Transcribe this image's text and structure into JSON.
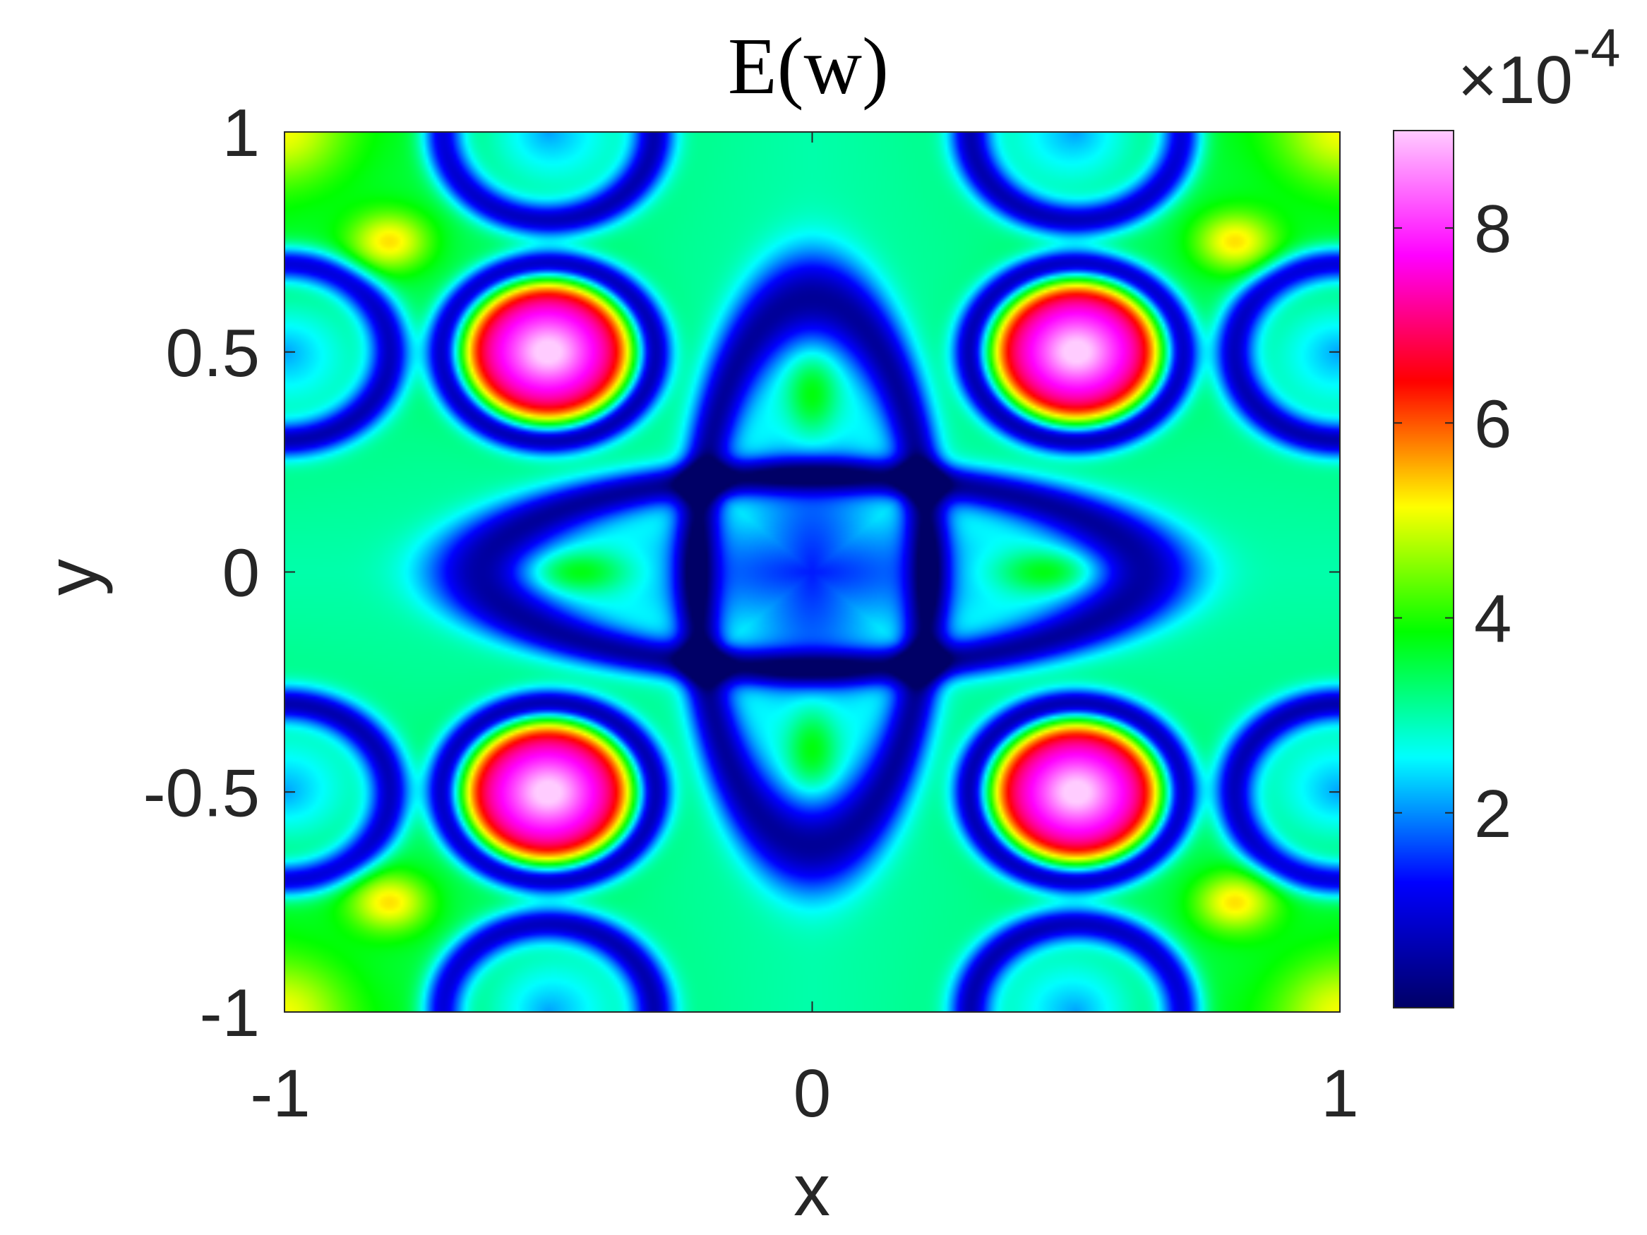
{
  "chart_data": {
    "type": "heatmap",
    "title": "E(w)",
    "xlabel": "x",
    "ylabel": "y",
    "xlim": [
      -1,
      1
    ],
    "ylim": [
      -1,
      1
    ],
    "x_ticks": [
      "-1",
      "0",
      "1"
    ],
    "y_ticks": [
      "-1",
      "-0.5",
      "0",
      "0.5",
      "1"
    ],
    "colorbar": {
      "multiplier": "×10",
      "exponent": "-4",
      "range": [
        0.0,
        9.0
      ],
      "tick_values": [
        2,
        4,
        6,
        8
      ],
      "tick_labels": [
        "2",
        "4",
        "6",
        "8"
      ],
      "colormap": [
        "#000066",
        "#0000ff",
        "#00ffff",
        "#00ff00",
        "#ffff00",
        "#ff0000",
        "#ff00ff",
        "#ffccff"
      ]
    },
    "features": [
      {
        "kind": "peak",
        "x": -0.5,
        "y": 0.5,
        "value": 8.9
      },
      {
        "kind": "peak",
        "x": 0.5,
        "y": 0.5,
        "value": 8.9
      },
      {
        "kind": "peak",
        "x": -0.5,
        "y": -0.5,
        "value": 8.9
      },
      {
        "kind": "peak",
        "x": 0.5,
        "y": -0.5,
        "value": 8.9
      },
      {
        "kind": "central-basin",
        "x": 0,
        "y": 0,
        "value": 1.2
      },
      {
        "kind": "local-max",
        "x": 0,
        "y": 0.4,
        "value": 3.2
      },
      {
        "kind": "local-max",
        "x": 0,
        "y": -0.4,
        "value": 3.2
      },
      {
        "kind": "local-max",
        "x": -0.45,
        "y": 0,
        "value": 3.2
      },
      {
        "kind": "local-max",
        "x": 0.45,
        "y": 0,
        "value": 3.2
      },
      {
        "kind": "secondary-max",
        "x": -0.8,
        "y": 0.75,
        "value": 5.5
      },
      {
        "kind": "secondary-max",
        "x": 0.8,
        "y": 0.75,
        "value": 5.5
      },
      {
        "kind": "secondary-max",
        "x": -0.8,
        "y": -0.75,
        "value": 5.5
      },
      {
        "kind": "secondary-max",
        "x": 0.8,
        "y": -0.75,
        "value": 5.5
      }
    ]
  }
}
